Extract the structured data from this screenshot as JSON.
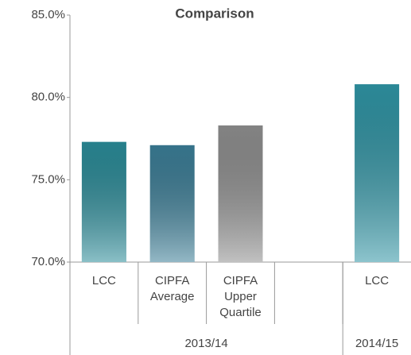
{
  "chart_data": {
    "type": "bar",
    "title": "Comparison",
    "categories": [
      "LCC",
      "CIPFA Average",
      "CIPFA Upper Quartile",
      null,
      "LCC"
    ],
    "values": [
      77.3,
      77.1,
      78.3,
      null,
      80.8
    ],
    "colors": [
      "#2a8b98",
      "#3b7d96",
      "#8e8e8e",
      null,
      "#2f94a4"
    ],
    "groups": [
      {
        "label": "2013/14",
        "span": [
          0,
          3
        ]
      },
      {
        "label": "2014/15",
        "span": [
          4,
          4
        ]
      }
    ],
    "ylim": [
      70,
      85
    ],
    "yticks": [
      {
        "value": 70,
        "label": "70.0%"
      },
      {
        "value": 75,
        "label": "75.0%"
      },
      {
        "value": 80,
        "label": "80.0%"
      },
      {
        "value": 85,
        "label": "85.0%"
      }
    ],
    "grid": false
  }
}
